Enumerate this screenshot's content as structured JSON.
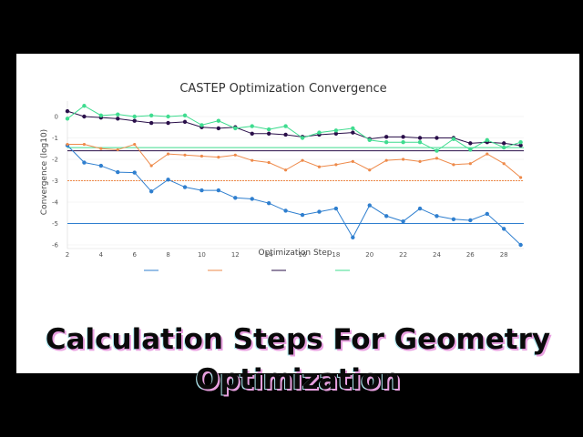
{
  "headline": {
    "line1": "Calculation Steps For Geometry",
    "line2": "Optimization"
  },
  "chart_data": {
    "type": "line",
    "title": "CASTEP Optimization Convergence",
    "xlabel": "Optimization Step",
    "ylabel": "Convergence (log10)",
    "xlim": [
      2,
      28
    ],
    "ylim": [
      -6,
      0
    ],
    "xticks": [
      2,
      4,
      6,
      8,
      10,
      12,
      14,
      16,
      18,
      20,
      22,
      24,
      26,
      28
    ],
    "yticks": [
      0,
      -1,
      -2,
      -3,
      -4,
      -5,
      -6
    ],
    "grid": true,
    "x": [
      2,
      3,
      4,
      5,
      6,
      7,
      8,
      9,
      10,
      11,
      12,
      13,
      14,
      15,
      16,
      17,
      18,
      19,
      20,
      21,
      22,
      23,
      24,
      25,
      26,
      27,
      28,
      29
    ],
    "series": [
      {
        "color": "#2f7fcf",
        "marker": "circle",
        "values": [
          -1.35,
          -2.15,
          -2.3,
          -2.6,
          -2.62,
          -3.5,
          -2.95,
          -3.3,
          -3.45,
          -3.45,
          -3.8,
          -3.85,
          -4.05,
          -4.4,
          -4.6,
          -4.45,
          -4.3,
          -5.65,
          -4.15,
          -4.65,
          -4.9,
          -4.3,
          -4.65,
          -4.8,
          -4.85,
          -4.55,
          -5.25,
          -6.0
        ],
        "threshold": -5.0
      },
      {
        "color": "#ee8a4a",
        "marker": "x",
        "values": [
          -1.3,
          -1.3,
          -1.5,
          -1.55,
          -1.3,
          -2.3,
          -1.75,
          -1.8,
          -1.85,
          -1.9,
          -1.8,
          -2.05,
          -2.15,
          -2.5,
          -2.05,
          -2.35,
          -2.25,
          -2.1,
          -2.5,
          -2.05,
          -2.0,
          -2.1,
          -1.95,
          -2.25,
          -2.2,
          -1.75,
          -2.2,
          -2.85
        ],
        "threshold": -3.0
      },
      {
        "color": "#2a0f4a",
        "marker": "circle",
        "values": [
          0.25,
          0.0,
          -0.05,
          -0.1,
          -0.2,
          -0.3,
          -0.3,
          -0.25,
          -0.5,
          -0.55,
          -0.5,
          -0.8,
          -0.8,
          -0.85,
          -0.95,
          -0.85,
          -0.8,
          -0.75,
          -1.05,
          -0.95,
          -0.95,
          -1.0,
          -1.0,
          -1.0,
          -1.25,
          -1.2,
          -1.25,
          -1.35
        ],
        "threshold": -1.6
      },
      {
        "color": "#3fdc8f",
        "marker": "circle",
        "values": [
          -0.1,
          0.5,
          0.05,
          0.1,
          0.0,
          0.05,
          0.0,
          0.05,
          -0.4,
          -0.2,
          -0.55,
          -0.45,
          -0.6,
          -0.45,
          -1.0,
          -0.75,
          -0.65,
          -0.55,
          -1.1,
          -1.2,
          -1.2,
          -1.2,
          -1.6,
          -1.05,
          -1.55,
          -1.1,
          -1.45,
          -1.2
        ],
        "threshold": -1.45
      }
    ]
  }
}
